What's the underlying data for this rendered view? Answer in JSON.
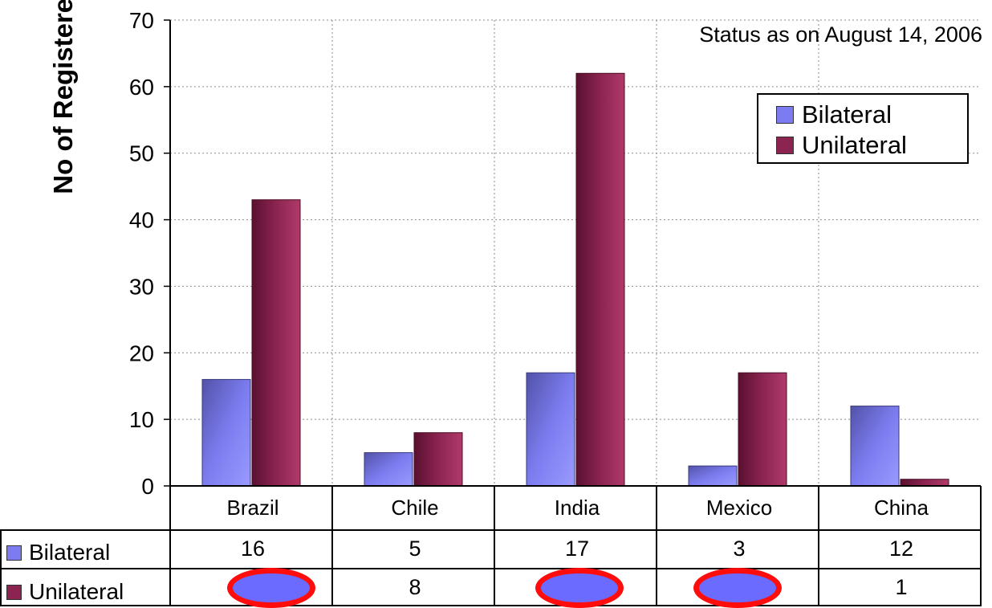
{
  "chart_data": {
    "type": "bar",
    "annotation": "Status as on August 14, 2006",
    "ylabel": "No of Registered Projects",
    "ylim": [
      0,
      70
    ],
    "yticks": [
      0,
      10,
      20,
      30,
      40,
      50,
      60,
      70
    ],
    "grid": true,
    "legend_position": "top-right",
    "categories": [
      "Brazil",
      "Chile",
      "India",
      "Mexico",
      "China"
    ],
    "series": [
      {
        "name": "Bilateral",
        "color": "#7c7cf0",
        "values": [
          16,
          5,
          17,
          3,
          12
        ]
      },
      {
        "name": "Unilateral",
        "color": "#8b2450",
        "values": [
          43,
          8,
          62,
          17,
          1
        ]
      }
    ],
    "table": {
      "rows": [
        {
          "label": "Bilateral",
          "cells": [
            "16",
            "5",
            "17",
            "3",
            "12"
          ]
        },
        {
          "label": "Unilateral",
          "cells": [
            "",
            "8",
            "",
            "",
            "1"
          ]
        }
      ]
    }
  }
}
